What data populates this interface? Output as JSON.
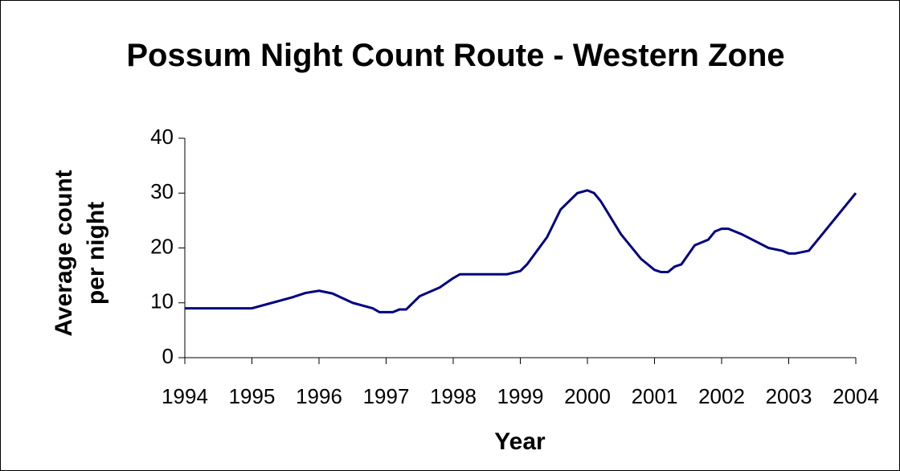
{
  "chart_data": {
    "type": "line",
    "title": "Possum Night Count Route - Western Zone",
    "xlabel": "Year",
    "ylabel": "Average count per night",
    "series": [
      {
        "name": "Average count per night",
        "color": "#000080",
        "x": [
          1994,
          1995,
          1995.3,
          1995.6,
          1995.8,
          1996,
          1996.2,
          1996.5,
          1996.8,
          1996.9,
          1997.1,
          1997.2,
          1997.3,
          1997.5,
          1997.8,
          1998,
          1998.1,
          1998.3,
          1998.8,
          1999,
          1999.1,
          1999.4,
          1999.6,
          1999.85,
          2000,
          2000.1,
          2000.2,
          2000.5,
          2000.8,
          2001,
          2001.1,
          2001.2,
          2001.3,
          2001.4,
          2001.6,
          2001.8,
          2001.9,
          2002,
          2002.1,
          2002.3,
          2002.7,
          2002.9,
          2003,
          2003.1,
          2003.3,
          2004
        ],
        "values": [
          9,
          9,
          10,
          11,
          11.8,
          12.2,
          11.7,
          10,
          9,
          8.3,
          8.3,
          8.8,
          8.8,
          11.2,
          12.8,
          14.5,
          15.2,
          15.2,
          15.2,
          15.8,
          17,
          22,
          27,
          30,
          30.5,
          30,
          28.5,
          22.5,
          18,
          16,
          15.6,
          15.6,
          16.6,
          17,
          20.5,
          21.5,
          23,
          23.5,
          23.5,
          22.5,
          20,
          19.5,
          19,
          19,
          19.5,
          30
        ]
      }
    ],
    "xlim": [
      1994,
      2004
    ],
    "xticks": [
      1994,
      1995,
      1996,
      1997,
      1998,
      1999,
      2000,
      2001,
      2002,
      2003,
      2004
    ],
    "ylim": [
      0,
      40
    ],
    "yticks": [
      0,
      10,
      20,
      30,
      40
    ],
    "grid": false
  }
}
